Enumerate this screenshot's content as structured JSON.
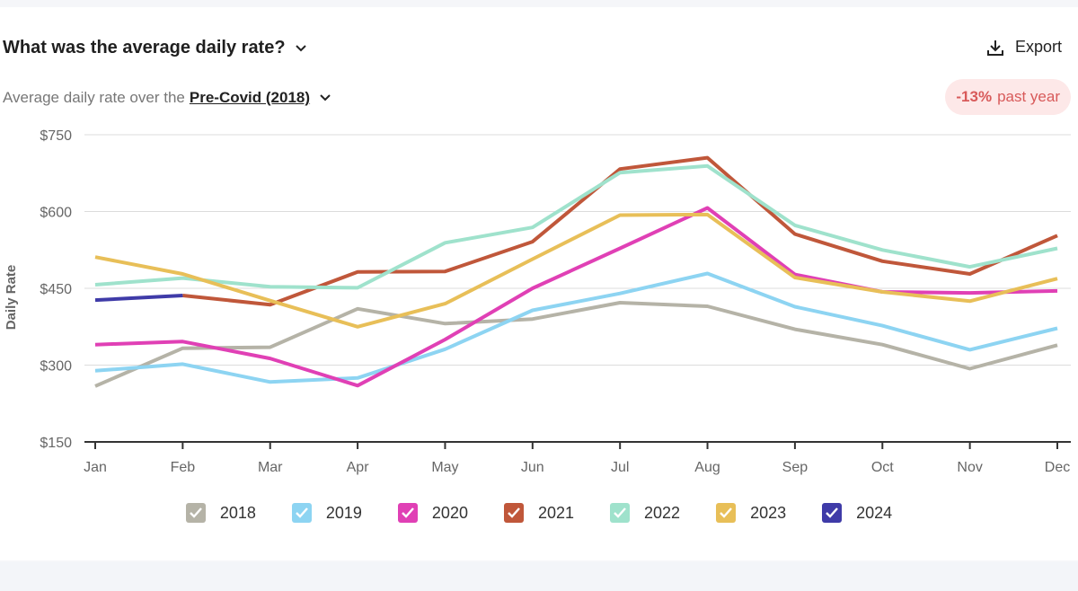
{
  "header": {
    "title": "What was the average daily rate?",
    "export_label": "Export",
    "subtitle_prefix": "Average daily rate over the",
    "period": "Pre-Covid (2018)",
    "badge_value": "-13%",
    "badge_text": "past year"
  },
  "chart_data": {
    "type": "line",
    "ylabel": "Daily Rate",
    "xlabel": "",
    "categories": [
      "Jan",
      "Feb",
      "Mar",
      "Apr",
      "May",
      "Jun",
      "Jul",
      "Aug",
      "Sep",
      "Oct",
      "Nov",
      "Dec"
    ],
    "ylim": [
      150,
      750
    ],
    "yticks": [
      150,
      300,
      450,
      600,
      750
    ],
    "ytick_labels": [
      "$150",
      "$300",
      "$450",
      "$600",
      "$750"
    ],
    "grid": true,
    "legend_position": "bottom",
    "series": [
      {
        "name": "2018",
        "color": "#b5b3a7",
        "values": [
          259,
          333,
          335,
          410,
          381,
          390,
          422,
          415,
          370,
          340,
          293,
          339
        ]
      },
      {
        "name": "2019",
        "color": "#8dd4f2",
        "values": [
          289,
          302,
          267,
          275,
          331,
          407,
          440,
          479,
          414,
          377,
          330,
          372
        ]
      },
      {
        "name": "2020",
        "color": "#e040b5",
        "values": [
          340,
          346,
          313,
          260,
          350,
          450,
          528,
          607,
          477,
          443,
          441,
          445
        ]
      },
      {
        "name": "2021",
        "color": "#c0573a",
        "values": [
          null,
          436,
          418,
          482,
          483,
          541,
          683,
          705,
          556,
          503,
          478,
          553
        ]
      },
      {
        "name": "2022",
        "color": "#9fe2cc",
        "values": [
          457,
          470,
          453,
          451,
          539,
          569,
          676,
          689,
          573,
          525,
          492,
          528
        ]
      },
      {
        "name": "2023",
        "color": "#e8bf58",
        "values": [
          511,
          478,
          426,
          375,
          420,
          507,
          593,
          594,
          471,
          443,
          425,
          469
        ]
      },
      {
        "name": "2024",
        "color": "#3f3ba8",
        "values": [
          427,
          436,
          null,
          null,
          null,
          null,
          null,
          null,
          null,
          null,
          null,
          null
        ]
      }
    ]
  }
}
